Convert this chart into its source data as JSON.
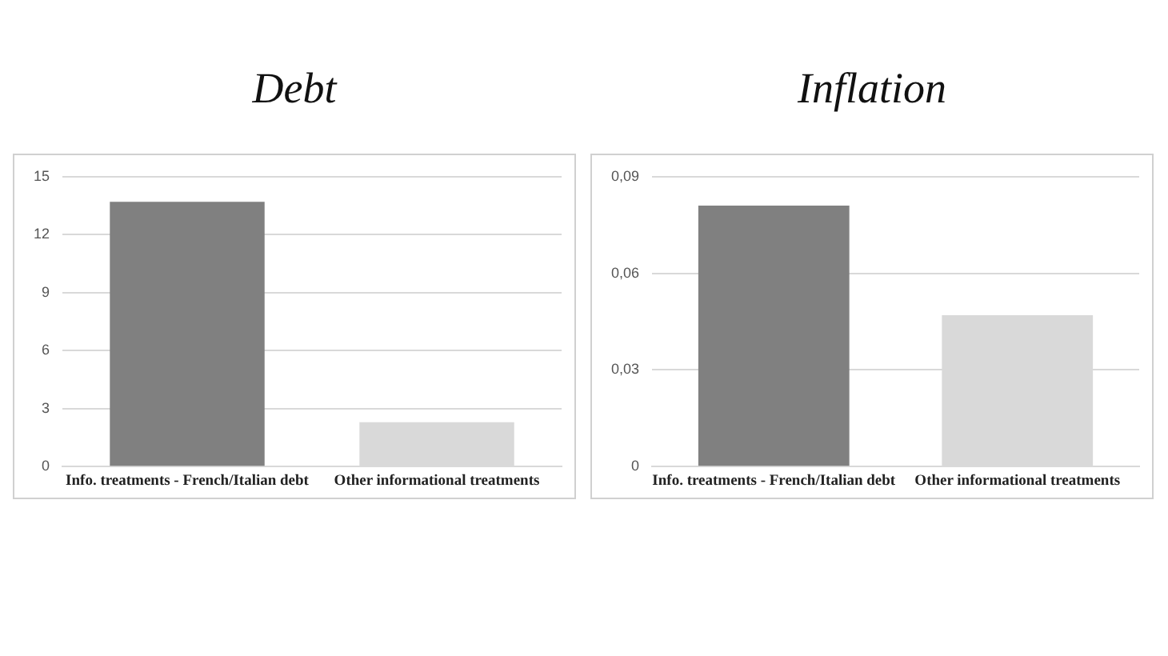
{
  "chart_data": [
    {
      "type": "bar",
      "title": "Debt",
      "categories": [
        "Info. treatments - French/Italian debt",
        "Other informational treatments"
      ],
      "values": [
        13.7,
        2.3
      ],
      "colors": [
        "#808080",
        "#d9d9d9"
      ],
      "ylim": [
        0,
        15
      ],
      "yticks": [
        0,
        3,
        6,
        9,
        12,
        15
      ],
      "grid": "y",
      "legend": false
    },
    {
      "type": "bar",
      "title": "Inflation",
      "categories": [
        "Info. treatments - French/Italian debt",
        "Other informational treatments"
      ],
      "values": [
        0.081,
        0.047
      ],
      "colors": [
        "#808080",
        "#d9d9d9"
      ],
      "ylim": [
        0,
        0.09
      ],
      "yticks": [
        0,
        {
          "value": 0.03,
          "label": "0,03"
        },
        {
          "value": 0.06,
          "label": "0,06"
        },
        {
          "value": 0.09,
          "label": "0,09"
        }
      ],
      "grid": "y",
      "legend": false
    }
  ]
}
